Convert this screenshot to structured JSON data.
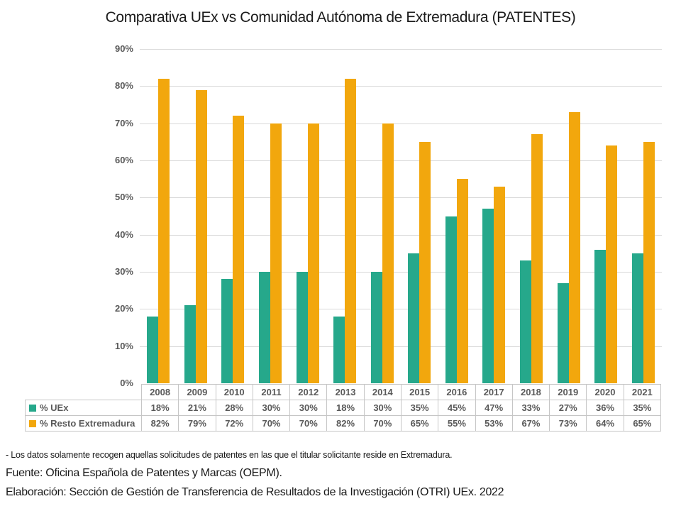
{
  "title": "Comparativa UEx vs Comunidad Autónoma de Extremadura (PATENTES)",
  "chart_data": {
    "type": "bar",
    "title": "Comparativa UEx vs Comunidad Autónoma de Extremadura (PATENTES)",
    "categories": [
      "2008",
      "2009",
      "2010",
      "2011",
      "2012",
      "2013",
      "2014",
      "2015",
      "2016",
      "2017",
      "2018",
      "2019",
      "2020",
      "2021"
    ],
    "series": [
      {
        "key": "uex",
        "name": "% UEx",
        "color": "#26A88B",
        "values": [
          18,
          21,
          28,
          30,
          30,
          18,
          30,
          35,
          45,
          47,
          33,
          27,
          36,
          35
        ]
      },
      {
        "key": "resto-extremadura",
        "name": "% Resto Extremadura",
        "color": "#F2A70D",
        "values": [
          82,
          79,
          72,
          70,
          70,
          82,
          70,
          65,
          55,
          53,
          67,
          73,
          64,
          65
        ]
      }
    ],
    "value_suffix": "%",
    "xlabel": "",
    "ylabel": "",
    "ylim": [
      0,
      90
    ],
    "yticks": [
      "0%",
      "10%",
      "20%",
      "30%",
      "40%",
      "50%",
      "60%",
      "70%",
      "80%",
      "90%"
    ],
    "grid": true,
    "legend_position": "table-rows-left",
    "data_table_shown": true
  },
  "footnotes": {
    "note": "- Los datos solamente recogen aquellas solicitudes de patentes en las que el titular solicitante reside en Extremadura.",
    "source": "Fuente: Oficina Española de Patentes y Marcas (OEPM).",
    "elaboration": "Elaboración: Sección de Gestión de Transferencia de Resultados de la Investigación (OTRI) UEx. 2022"
  },
  "colors": {
    "grid": "#D9D9D9",
    "table_border": "#C6C6C6",
    "axis_text": "#595959",
    "title_text": "#1A1A1A"
  }
}
